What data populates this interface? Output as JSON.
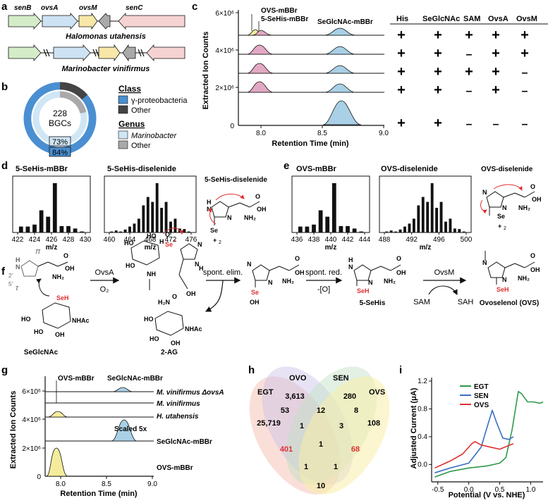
{
  "panel_labels": {
    "a": "a",
    "b": "b",
    "c": "c",
    "d": "d",
    "e": "e",
    "f": "f",
    "g": "g",
    "h": "h",
    "i": "i"
  },
  "panel_a": {
    "genes": [
      "senB",
      "ovsA",
      "ovsM",
      "senC"
    ],
    "org1": "Halomonas utahensis",
    "org2": "Marinobacter vinifirmus"
  },
  "panel_b": {
    "center_count": "228",
    "center_unit": "BGCs",
    "pct_inner": "73%",
    "pct_outer": "84%",
    "legend_class_title": "Class",
    "legend_class_1": "γ-proteobacteria",
    "legend_class_2": "Other",
    "legend_genus_title": "Genus",
    "legend_genus_1": "Marinobacter",
    "legend_genus_2": "Other",
    "colors": {
      "class_main": "#4a8fd1",
      "class_other": "#444444",
      "genus_main": "#cfe6f5",
      "genus_other": "#a9a9a9"
    }
  },
  "panel_c": {
    "ylabel": "Extracted Ion Counts",
    "xlabel": "Retention Time (min)",
    "yticks": [
      "6×10⁶",
      "4×10⁶",
      "2×10⁶",
      "0"
    ],
    "xticks": [
      "8.0",
      "8.5",
      "9.0"
    ],
    "peak_labels": [
      "OVS-mBBr",
      "5-SeHis-mBBr",
      "SeGlcNAc-mBBr"
    ],
    "table_headers": [
      "His",
      "SeGlcNAc",
      "SAM",
      "OvsA",
      "OvsM"
    ],
    "table_rows": [
      [
        "+",
        "+",
        "+",
        "+",
        "+"
      ],
      [
        "+",
        "+",
        "-",
        "+",
        "+"
      ],
      [
        "+",
        "+",
        "+",
        "+",
        "-"
      ],
      [
        "+",
        "+",
        "-",
        "+",
        "-"
      ],
      [
        "+",
        "+",
        "-",
        "-",
        "-"
      ]
    ]
  },
  "panel_d": {
    "title1": "5-SeHis-mBBr",
    "xticks1": [
      "422",
      "424",
      "426",
      "428",
      "430"
    ],
    "bars1": [
      0.12,
      0.12,
      0.16,
      0.45,
      0.32,
      1.0,
      0.13,
      0.13,
      0.08,
      0.02
    ],
    "title2": "5-SeHis-diselenide",
    "xticks2": [
      "460",
      "464",
      "468",
      "472",
      "476"
    ],
    "bars2": [
      0.02,
      0.04,
      0.02,
      0.06,
      0.12,
      0.18,
      0.28,
      0.55,
      0.72,
      0.62,
      1.0,
      0.5,
      0.62,
      0.22,
      0.28,
      0.08,
      0.07,
      0.02
    ],
    "xlabel": "m/z",
    "struct_title": "5-SeHis-diselenide"
  },
  "panel_e": {
    "title1": "OVS-mBBr",
    "xticks1": [
      "436",
      "438",
      "440",
      "442",
      "444"
    ],
    "bars1": [
      0.12,
      0.12,
      0.16,
      0.45,
      0.32,
      1.0,
      0.13,
      0.13,
      0.08,
      0.02
    ],
    "title2": "OVS-diselenide",
    "xticks2": [
      "488",
      "492",
      "496",
      "500"
    ],
    "bars2": [
      0.02,
      0.04,
      0.02,
      0.06,
      0.12,
      0.18,
      0.28,
      0.55,
      0.72,
      0.62,
      1.0,
      0.5,
      0.62,
      0.22,
      0.28,
      0.08,
      0.07,
      0.02
    ],
    "xlabel": "m/z",
    "struct_title": "OVS-diselenide"
  },
  "panel_f": {
    "arrow1_top": "OvsA",
    "arrow1_bottom": "O₂",
    "arrow2_top": "spont. elim.",
    "arrow3_top": "spont. red.",
    "arrow3_bottom": "-[O]",
    "arrow4_top": "OvsM",
    "cofactor_in": "SAM",
    "cofactor_out": "SAH",
    "names": [
      "SeGlcNAc",
      "2-AG",
      "5-SeHis",
      "Ovoselenol (OVS)"
    ]
  },
  "panel_g": {
    "ylabel": "Extracted Ion Counts",
    "xlabel": "Retention Time (min)",
    "yticks": [
      "6×10⁶",
      "4×10⁶",
      "2×10⁶",
      "0"
    ],
    "xticks": [
      "8.0",
      "8.5",
      "9.0"
    ],
    "peak_top_1": "OVS-mBBr",
    "peak_top_2": "SeGlcNAc-mBBr",
    "traces": [
      "M. vinifirmus ΔovsA",
      "M. vinifirmus",
      "H. utahensis",
      "SeGlcNAc-mBBr",
      "OVS-mBBr"
    ],
    "scaled": "Scaled 5x"
  },
  "panel_h": {
    "sets": [
      "EGT",
      "OVO",
      "SEN",
      "OVS"
    ],
    "values": {
      "egt": "25,719",
      "ovo": "3,613",
      "sen": "280",
      "ovs": "108",
      "egt_ovo": "53",
      "ovo_sen": "12",
      "sen_ovs": "8",
      "egt_ovo_sen": "1",
      "ovo_sen_ovs": "3",
      "center": "1",
      "egt_ovs": "401",
      "egt_sen_ovs": "1",
      "egt_ovo_ovs": "1",
      "bottom": "10",
      "right_red": "68"
    }
  },
  "chart_data": {
    "type": "line",
    "xlabel": "Potential (V vs. NHE)",
    "ylabel": "Adjusted Current (μA)",
    "xlim": [
      -0.6,
      1.2
    ],
    "ylim": [
      -0.25,
      1.25
    ],
    "xticks": [
      "-0.5",
      "0.0",
      "0.5",
      "1.0"
    ],
    "yticks": [
      "0.0",
      "0.4",
      "0.8",
      "1.2"
    ],
    "legend_position": "top-left",
    "series": [
      {
        "name": "EGT",
        "color": "#2e9a4a",
        "x": [
          -0.55,
          -0.3,
          0.0,
          0.3,
          0.5,
          0.6,
          0.7,
          0.8,
          0.85,
          0.95,
          1.05,
          1.15,
          1.2
        ],
        "y": [
          -0.18,
          -0.1,
          -0.05,
          -0.02,
          0.02,
          0.1,
          0.5,
          1.05,
          1.02,
          0.9,
          0.9,
          0.88,
          0.9
        ]
      },
      {
        "name": "SEN",
        "color": "#3a6fc4",
        "x": [
          -0.55,
          -0.3,
          0.0,
          0.2,
          0.3,
          0.38,
          0.45,
          0.55,
          0.65,
          0.72
        ],
        "y": [
          -0.12,
          -0.05,
          0.02,
          0.25,
          0.55,
          0.78,
          0.6,
          0.38,
          0.36,
          0.4
        ]
      },
      {
        "name": "OVS",
        "color": "#e03030",
        "x": [
          -0.55,
          -0.3,
          -0.1,
          0.05,
          0.1,
          0.2,
          0.35,
          0.5,
          0.72
        ],
        "y": [
          -0.05,
          0.05,
          0.15,
          0.3,
          0.33,
          0.28,
          0.25,
          0.22,
          0.3
        ]
      }
    ]
  }
}
